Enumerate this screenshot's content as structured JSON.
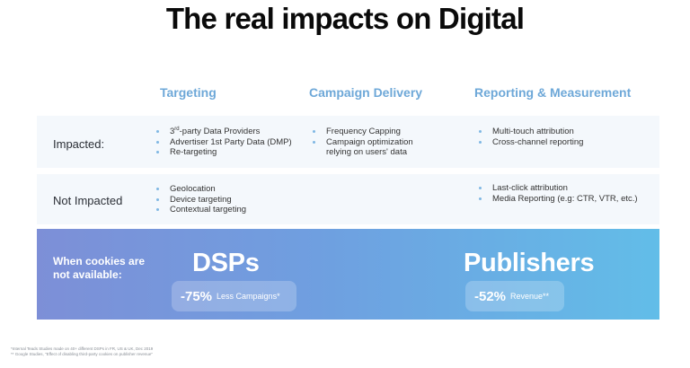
{
  "title": "The real impacts on Digital",
  "columns": [
    "Targeting",
    "Campaign Delivery",
    "Reporting & Measurement"
  ],
  "rows": {
    "impacted": {
      "label": "Impacted:",
      "targeting": {
        "item1_sup": "rd",
        "item1_pre": "3",
        "item1_post": "-party Data Providers",
        "item2": "Advertiser 1st Party Data (DMP)",
        "item3": "Re-targeting"
      },
      "delivery": [
        "Frequency Capping",
        "Campaign optimization relying on users' data"
      ],
      "reporting": [
        "Multi-touch attribution",
        "Cross-channel reporting"
      ]
    },
    "not_impacted": {
      "label": "Not Impacted",
      "targeting": [
        "Geolocation",
        "Device targeting",
        "Contextual targeting"
      ],
      "reporting": [
        "Last-click attribution",
        "Media Reporting (e.g: CTR, VTR, etc.)"
      ]
    }
  },
  "banner": {
    "label": "When cookies are not available:",
    "dsps": {
      "name": "DSPs",
      "pct": "-75%",
      "text": "Less Campaigns*"
    },
    "publishers": {
      "name": "Publishers",
      "pct": "-52%",
      "text": "Revenue**"
    },
    "colors": {
      "start": "#7d8fd7",
      "end": "#62bde8"
    }
  },
  "footnotes": [
    "*Internal Teads Studies made on 40+ different DSPs in FR, US & UK, Dec 2019",
    "** Google Studies, \"Effect of disabling third-party cookies on publisher revenue\""
  ],
  "accent_color": "#6ea8d8"
}
